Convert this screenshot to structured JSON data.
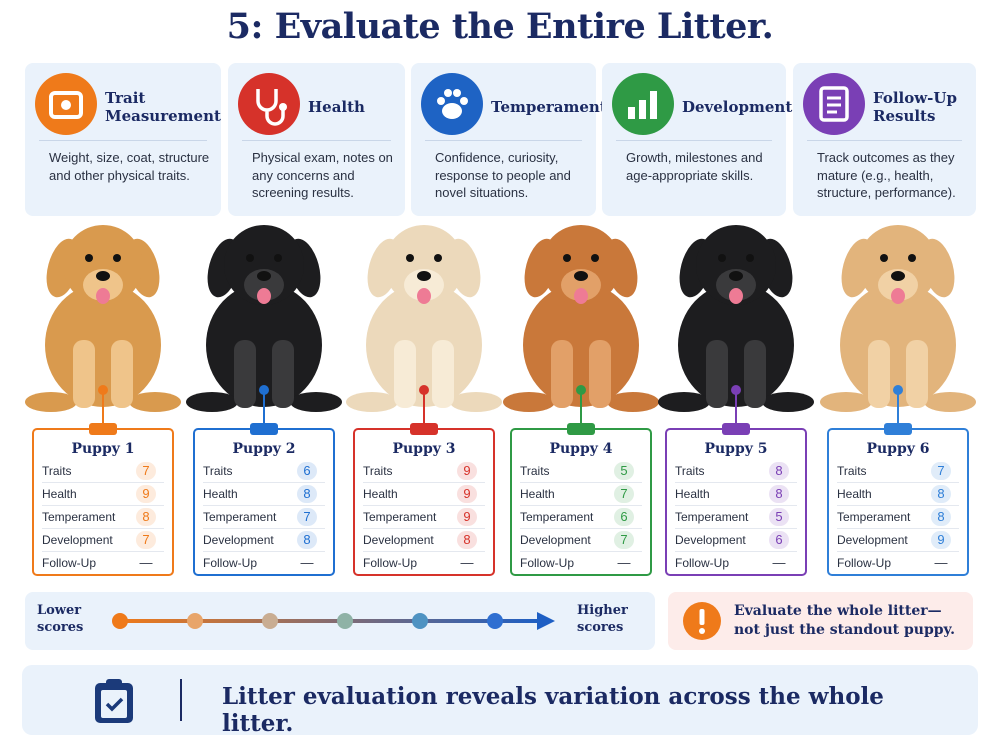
{
  "title": "5: Evaluate the Entire Litter.",
  "criteria": [
    {
      "title": "Trait Measurement",
      "text": "Weight, size, coat, structure and other physical traits.",
      "color": "#ef7a1a"
    },
    {
      "title": "Health",
      "text": "Physical exam, notes on any concerns and screening results.",
      "color": "#d6322a"
    },
    {
      "title": "Temperament",
      "text": "Confidence, curiosity, response to people and novel situations.",
      "color": "#1e63c4"
    },
    {
      "title": "Development",
      "text": "Growth, milestones and age-appropriate skills.",
      "color": "#2f9a45"
    },
    {
      "title": "Follow-Up Results",
      "text": "Track outcomes as they mature (e.g., health, structure, performance).",
      "color": "#7a3fb5"
    }
  ],
  "row_labels": [
    "Traits",
    "Health",
    "Temperament",
    "Development",
    "Follow-Up"
  ],
  "puppies": [
    {
      "name": "Puppy 1",
      "color": "#ef7a1a",
      "scores": [
        7,
        9,
        8,
        7,
        "—"
      ]
    },
    {
      "name": "Puppy 2",
      "color": "#1f6fd1",
      "scores": [
        6,
        8,
        7,
        8,
        "—"
      ]
    },
    {
      "name": "Puppy 3",
      "color": "#d6322a",
      "scores": [
        9,
        9,
        9,
        8,
        "—"
      ]
    },
    {
      "name": "Puppy 4",
      "color": "#2f9a45",
      "scores": [
        5,
        7,
        6,
        7,
        "—"
      ]
    },
    {
      "name": "Puppy 5",
      "color": "#7a3fb5",
      "scores": [
        8,
        8,
        5,
        6,
        "—"
      ]
    },
    {
      "name": "Puppy 6",
      "color": "#2f7fd8",
      "scores": [
        7,
        8,
        8,
        9,
        "—"
      ]
    }
  ],
  "scale": {
    "low": "Lower scores",
    "high": "Higher scores"
  },
  "callout": "Evaluate the whole litter—not just the standout puppy.",
  "footer": "Litter evaluation reveals variation across the whole litter."
}
